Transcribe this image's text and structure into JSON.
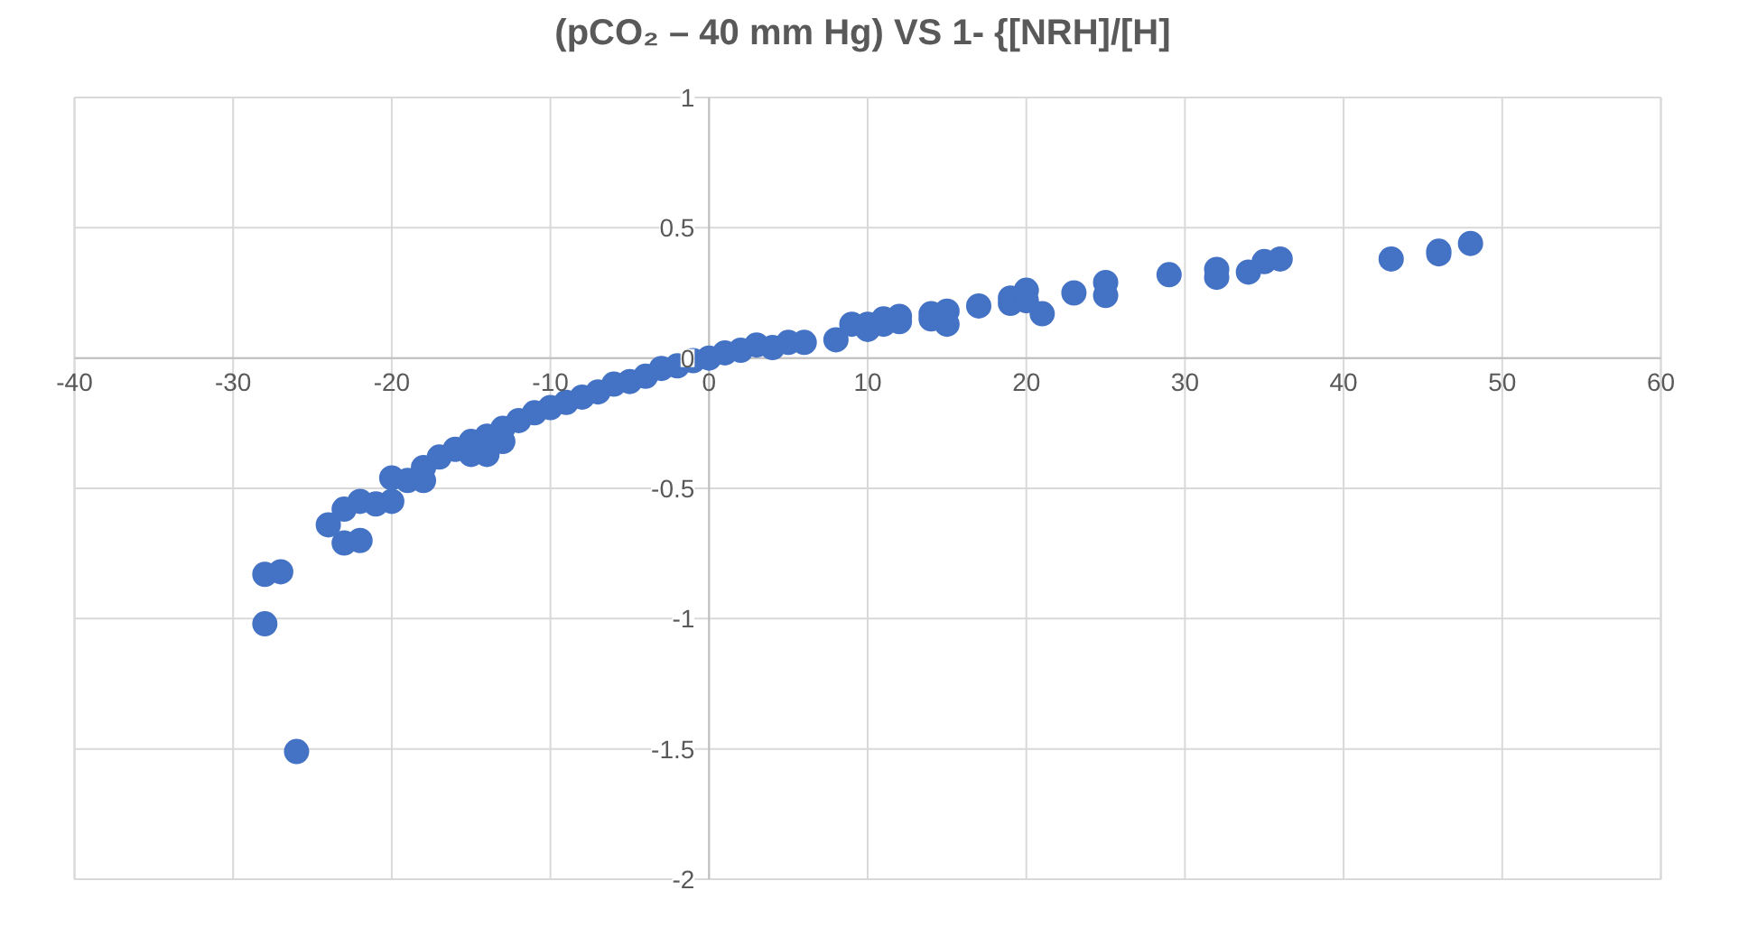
{
  "chart_data": {
    "type": "scatter",
    "title": "(pCO₂ – 40 mm Hg) VS  1- {[NRH]/[H]",
    "xlim": [
      -40,
      60
    ],
    "xticks": [
      -40,
      -30,
      -20,
      -10,
      0,
      10,
      20,
      30,
      40,
      50,
      60
    ],
    "ylim": [
      -2,
      1
    ],
    "yticks": [
      -2,
      -1.5,
      -1,
      -0.5,
      0,
      0.5,
      1
    ],
    "grid": true,
    "marker": "circle",
    "series": [
      {
        "color": "#4472c4",
        "x": [
          -28,
          -27,
          -28,
          -26,
          -24,
          -23,
          -23,
          -22,
          -22,
          -21,
          -20,
          -20,
          -19,
          -18,
          -18,
          -17,
          -16,
          -15,
          -15,
          -14,
          -14,
          -13,
          -13,
          -12,
          -11,
          -10,
          -9,
          -8,
          -7,
          -6,
          -5,
          -4,
          -3,
          -2,
          -1,
          0,
          1,
          2,
          3,
          4,
          5,
          6,
          8,
          9,
          10,
          10,
          11,
          11,
          12,
          12,
          14,
          14,
          15,
          15,
          17,
          19,
          19,
          20,
          20,
          21,
          23,
          25,
          25,
          29,
          32,
          32,
          34,
          35,
          36,
          43,
          46,
          46,
          48
        ],
        "values": [
          -0.83,
          -0.82,
          -1.02,
          -1.51,
          -0.64,
          -0.58,
          -0.71,
          -0.55,
          -0.7,
          -0.56,
          -0.46,
          -0.55,
          -0.47,
          -0.42,
          -0.47,
          -0.38,
          -0.35,
          -0.32,
          -0.37,
          -0.3,
          -0.37,
          -0.27,
          -0.32,
          -0.24,
          -0.21,
          -0.19,
          -0.17,
          -0.15,
          -0.13,
          -0.1,
          -0.09,
          -0.07,
          -0.04,
          -0.03,
          -0.01,
          0,
          0.02,
          0.03,
          0.05,
          0.04,
          0.06,
          0.06,
          0.07,
          0.13,
          0.13,
          0.11,
          0.15,
          0.13,
          0.14,
          0.16,
          0.17,
          0.15,
          0.18,
          0.13,
          0.2,
          0.21,
          0.23,
          0.26,
          0.22,
          0.17,
          0.25,
          0.29,
          0.24,
          0.32,
          0.34,
          0.31,
          0.33,
          0.37,
          0.38,
          0.38,
          0.41,
          0.4,
          0.44
        ]
      }
    ]
  }
}
